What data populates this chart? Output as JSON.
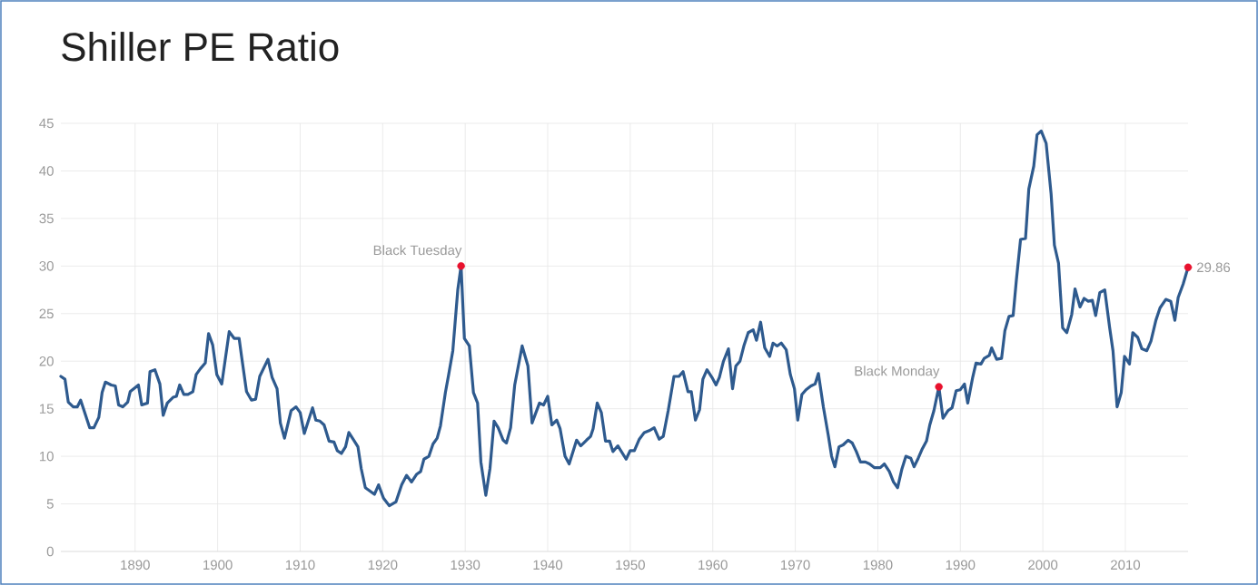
{
  "chart_data": {
    "type": "line",
    "title": "Shiller PE Ratio",
    "series": [
      {
        "type": "line",
        "color": "#2e5a8e",
        "marker": "none",
        "x": [
          1881.0,
          1881.5,
          1881.9,
          1882.5,
          1883.0,
          1883.4,
          1884.5,
          1885.0,
          1885.6,
          1886.0,
          1886.4,
          1887.1,
          1887.6,
          1888.0,
          1888.5,
          1889.1,
          1889.4,
          1890.4,
          1890.8,
          1891.5,
          1891.8,
          1892.4,
          1893.0,
          1893.4,
          1893.9,
          1894.6,
          1895.0,
          1895.4,
          1895.9,
          1896.4,
          1897.0,
          1897.4,
          1897.9,
          1898.5,
          1898.9,
          1899.4,
          1899.9,
          1900.5,
          1901.4,
          1902.0,
          1902.6,
          1902.9,
          1903.5,
          1904.1,
          1904.6,
          1905.1,
          1906.1,
          1906.6,
          1907.2,
          1907.6,
          1908.1,
          1908.9,
          1909.5,
          1910.0,
          1910.5,
          1911.5,
          1911.9,
          1912.4,
          1912.9,
          1913.5,
          1914.1,
          1914.5,
          1915.0,
          1915.5,
          1915.9,
          1916.5,
          1917.0,
          1917.4,
          1917.9,
          1919.0,
          1919.5,
          1920.1,
          1920.8,
          1921.6,
          1922.3,
          1922.9,
          1923.5,
          1924.1,
          1924.6,
          1925.0,
          1925.6,
          1926.1,
          1926.6,
          1927.0,
          1927.6,
          1928.0,
          1928.5,
          1929.1,
          1929.5,
          1929.9,
          1930.5,
          1931.0,
          1931.5,
          1931.9,
          1932.5,
          1933.0,
          1933.5,
          1934.0,
          1934.6,
          1935.0,
          1935.5,
          1936.0,
          1936.9,
          1937.6,
          1938.1,
          1939.0,
          1939.5,
          1940.0,
          1940.5,
          1941.1,
          1941.5,
          1942.1,
          1942.6,
          1943.5,
          1944.0,
          1944.7,
          1945.2,
          1945.5,
          1946.0,
          1946.5,
          1947.0,
          1947.5,
          1947.9,
          1948.5,
          1949.5,
          1950.0,
          1950.5,
          1951.1,
          1951.7,
          1952.3,
          1952.9,
          1953.5,
          1954.0,
          1954.6,
          1955.3,
          1955.9,
          1956.4,
          1957.0,
          1957.4,
          1957.9,
          1958.4,
          1958.8,
          1959.3,
          1959.9,
          1960.4,
          1960.8,
          1961.3,
          1961.9,
          1962.4,
          1962.8,
          1963.3,
          1963.8,
          1964.3,
          1964.9,
          1965.3,
          1965.8,
          1966.3,
          1966.9,
          1967.3,
          1967.8,
          1968.3,
          1968.9,
          1969.4,
          1969.9,
          1970.3,
          1970.8,
          1971.3,
          1971.9,
          1972.4,
          1972.8,
          1973.4,
          1974.0,
          1974.4,
          1974.8,
          1975.3,
          1975.8,
          1976.4,
          1976.9,
          1977.4,
          1977.9,
          1978.5,
          1979.0,
          1979.6,
          1980.3,
          1980.8,
          1981.4,
          1981.9,
          1982.4,
          1982.9,
          1983.4,
          1984.0,
          1984.4,
          1984.9,
          1985.4,
          1985.9,
          1986.3,
          1986.8,
          1987.4,
          1987.9,
          1988.5,
          1989.0,
          1989.5,
          1990.0,
          1990.5,
          1990.9,
          1991.5,
          1991.9,
          1992.5,
          1992.9,
          1993.5,
          1993.8,
          1994.4,
          1995.0,
          1995.4,
          1995.9,
          1996.4,
          1996.8,
          1997.3,
          1997.9,
          1998.3,
          1998.9,
          1999.3,
          1999.8,
          2000.4,
          2001.0,
          2001.4,
          2001.9,
          2002.4,
          2002.9,
          2003.5,
          2003.9,
          2004.5,
          2005.0,
          2005.5,
          2006.0,
          2006.4,
          2006.9,
          2007.5,
          2008.1,
          2008.5,
          2009.0,
          2009.5,
          2009.9,
          2010.5,
          2010.9,
          2011.5,
          2012.0,
          2012.6,
          2013.1,
          2013.7,
          2014.2,
          2014.9,
          2015.5,
          2016.0,
          2016.4,
          2017.0,
          2017.6
        ],
        "values": [
          18.4,
          18.1,
          15.7,
          15.2,
          15.2,
          15.9,
          13.0,
          13.0,
          14.1,
          16.7,
          17.8,
          17.5,
          17.4,
          15.4,
          15.2,
          15.7,
          16.8,
          17.5,
          15.4,
          15.6,
          18.9,
          19.1,
          17.6,
          14.3,
          15.6,
          16.2,
          16.3,
          17.5,
          16.5,
          16.5,
          16.8,
          18.6,
          19.2,
          19.8,
          22.9,
          21.7,
          18.6,
          17.6,
          23.1,
          22.4,
          22.4,
          20.5,
          16.8,
          15.9,
          16.0,
          18.4,
          20.2,
          18.3,
          17.1,
          13.5,
          11.9,
          14.8,
          15.2,
          14.6,
          12.4,
          15.1,
          13.8,
          13.7,
          13.3,
          11.6,
          11.5,
          10.6,
          10.3,
          11.0,
          12.5,
          11.7,
          11.0,
          8.7,
          6.7,
          6.0,
          7.0,
          5.6,
          4.8,
          5.2,
          7.0,
          8.0,
          7.3,
          8.1,
          8.4,
          9.7,
          10.0,
          11.3,
          11.9,
          13.2,
          16.7,
          18.6,
          21.1,
          27.5,
          30.0,
          22.4,
          21.6,
          16.7,
          15.6,
          9.4,
          5.9,
          8.7,
          13.7,
          13.0,
          11.7,
          11.4,
          13.0,
          17.5,
          21.6,
          19.5,
          13.5,
          15.6,
          15.4,
          16.3,
          13.3,
          13.8,
          12.9,
          10.0,
          9.2,
          11.7,
          11.1,
          11.7,
          12.1,
          12.9,
          15.6,
          14.6,
          11.6,
          11.6,
          10.5,
          11.1,
          9.7,
          10.6,
          10.6,
          11.8,
          12.5,
          12.7,
          13.0,
          11.8,
          12.1,
          14.8,
          18.4,
          18.4,
          18.9,
          16.8,
          16.8,
          13.8,
          14.9,
          18.1,
          19.1,
          18.3,
          17.5,
          18.3,
          20.0,
          21.3,
          17.1,
          19.5,
          20.0,
          21.7,
          23.0,
          23.3,
          22.2,
          24.1,
          21.4,
          20.5,
          21.9,
          21.6,
          21.9,
          21.2,
          18.6,
          17.1,
          13.8,
          16.5,
          17.0,
          17.4,
          17.6,
          18.7,
          15.2,
          12.2,
          10.0,
          8.9,
          11.0,
          11.2,
          11.7,
          11.4,
          10.5,
          9.4,
          9.4,
          9.2,
          8.8,
          8.8,
          9.2,
          8.4,
          7.3,
          6.7,
          8.6,
          10.0,
          9.8,
          8.9,
          9.8,
          10.8,
          11.6,
          13.3,
          14.8,
          17.3,
          14.0,
          14.8,
          15.1,
          16.9,
          17.0,
          17.6,
          15.6,
          18.3,
          19.8,
          19.7,
          20.3,
          20.6,
          21.4,
          20.2,
          20.3,
          23.2,
          24.7,
          24.8,
          28.6,
          32.8,
          32.9,
          38.1,
          40.5,
          43.8,
          44.2,
          42.9,
          37.6,
          32.2,
          30.3,
          23.5,
          23.0,
          24.9,
          27.6,
          25.7,
          26.6,
          26.3,
          26.4,
          24.8,
          27.2,
          27.5,
          23.5,
          21.1,
          15.2,
          16.7,
          20.5,
          19.7,
          23.0,
          22.5,
          21.3,
          21.1,
          22.1,
          24.3,
          25.6,
          26.5,
          26.3,
          24.3,
          26.7,
          28.1,
          29.86
        ]
      },
      {
        "type": "scatter",
        "color": "#e8112d",
        "marker": "circle",
        "x": [
          1929.5,
          1987.4,
          2017.6
        ],
        "values": [
          30.0,
          17.3,
          29.86
        ]
      }
    ],
    "xlim": [
      1881,
      2017.6
    ],
    "ylim": [
      0,
      45
    ],
    "xticks": [
      1890,
      1900,
      1910,
      1920,
      1930,
      1940,
      1950,
      1960,
      1970,
      1980,
      1990,
      2000,
      2010
    ],
    "yticks": [
      0,
      5,
      10,
      15,
      20,
      25,
      30,
      35,
      40,
      45
    ],
    "grid": true,
    "annotations": [
      {
        "text": "Black Tuesday",
        "x": 1929.5,
        "y": 30.0
      },
      {
        "text": "Black Monday",
        "x": 1987.4,
        "y": 17.3
      },
      {
        "text": "29.86",
        "x": 2017.6,
        "y": 29.86
      }
    ]
  }
}
